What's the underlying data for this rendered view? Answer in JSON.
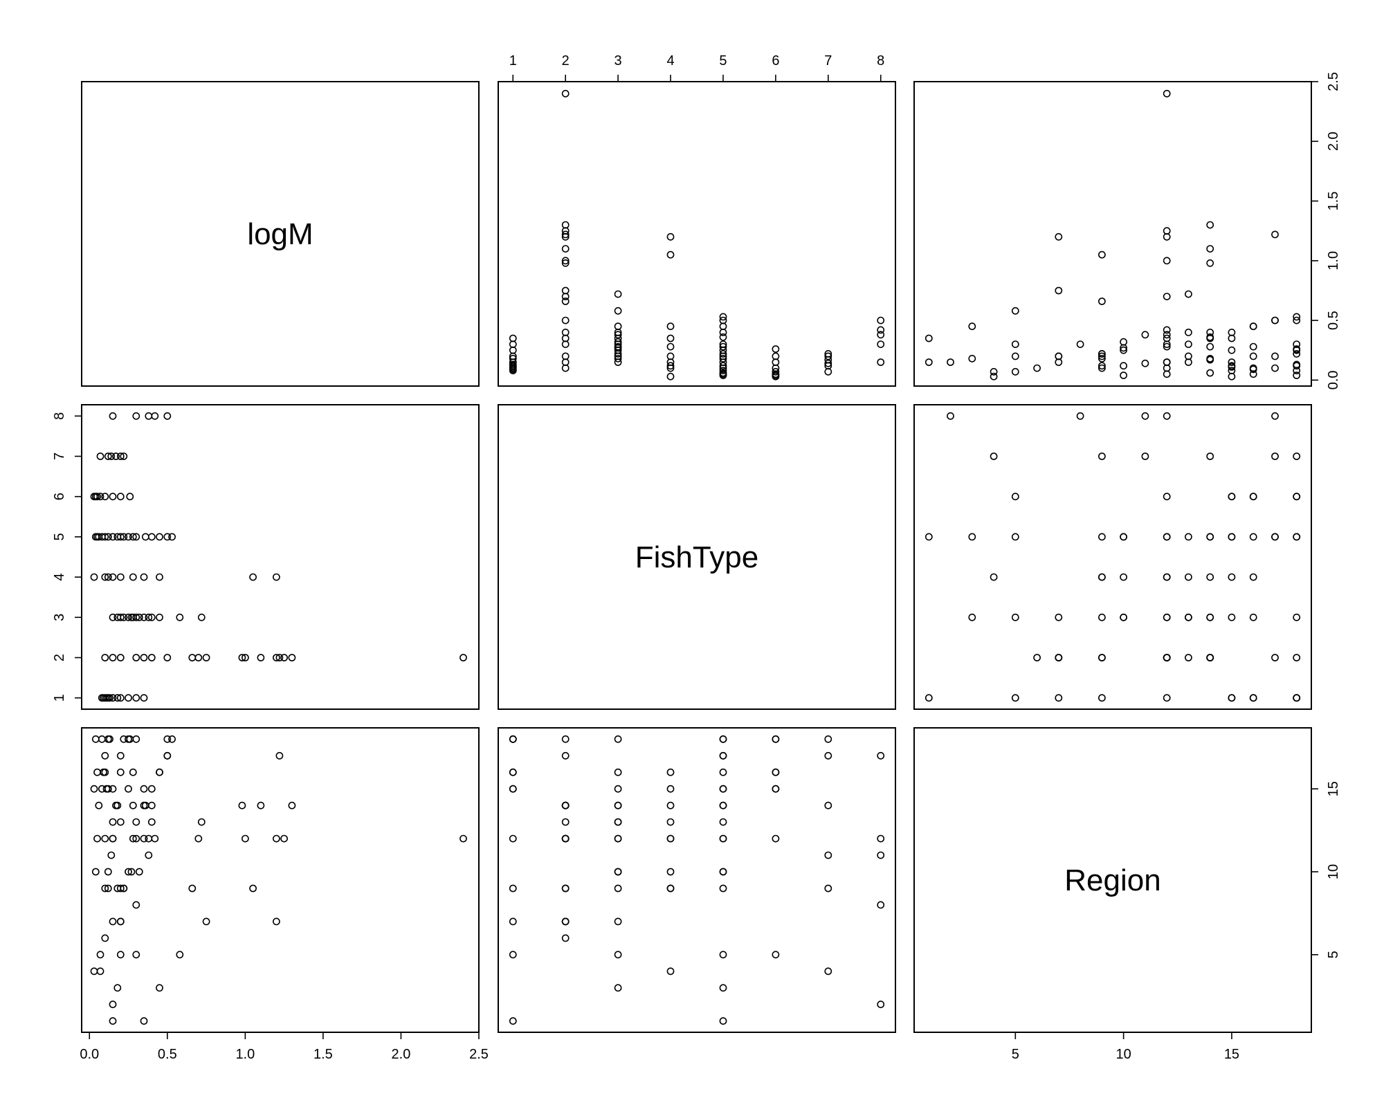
{
  "chart_data": {
    "type": "scatter",
    "kind": "pairs-matrix",
    "variables": [
      "logM",
      "FishType",
      "Region"
    ],
    "axes": {
      "logM": {
        "ticks": [
          "0.0",
          "0.5",
          "1.0",
          "1.5",
          "2.0",
          "2.5"
        ],
        "tick_values": [
          0,
          0.5,
          1,
          1.5,
          2,
          2.5
        ],
        "range": [
          -0.05,
          2.5
        ]
      },
      "FishType": {
        "ticks": [
          "1",
          "2",
          "3",
          "4",
          "5",
          "6",
          "7",
          "8"
        ],
        "tick_values": [
          1,
          2,
          3,
          4,
          5,
          6,
          7,
          8
        ],
        "range": [
          0.72,
          8.28
        ]
      },
      "Region": {
        "ticks": [
          "5",
          "10",
          "15"
        ],
        "tick_values": [
          5,
          10,
          15
        ],
        "range": [
          0.32,
          18.68
        ]
      }
    },
    "grid": false,
    "marker": "open-circle",
    "observations": [
      {
        "FishType": 1,
        "logM": 0.08,
        "Region": 18
      },
      {
        "FishType": 1,
        "logM": 0.1,
        "Region": 16
      },
      {
        "FishType": 1,
        "logM": 0.12,
        "Region": 15
      },
      {
        "FishType": 1,
        "logM": 0.15,
        "Region": 12
      },
      {
        "FishType": 1,
        "logM": 0.18,
        "Region": 9
      },
      {
        "FishType": 1,
        "logM": 0.2,
        "Region": 7
      },
      {
        "FishType": 1,
        "logM": 0.3,
        "Region": 5
      },
      {
        "FishType": 1,
        "logM": 0.35,
        "Region": 1
      },
      {
        "FishType": 1,
        "logM": 0.25,
        "Region": 18
      },
      {
        "FishType": 1,
        "logM": 0.09,
        "Region": 16
      },
      {
        "FishType": 1,
        "logM": 0.11,
        "Region": 15
      },
      {
        "FishType": 1,
        "logM": 0.13,
        "Region": 18
      },
      {
        "FishType": 2,
        "logM": 2.4,
        "Region": 12
      },
      {
        "FishType": 2,
        "logM": 1.3,
        "Region": 14
      },
      {
        "FishType": 2,
        "logM": 1.25,
        "Region": 12
      },
      {
        "FishType": 2,
        "logM": 1.22,
        "Region": 17
      },
      {
        "FishType": 2,
        "logM": 1.2,
        "Region": 7
      },
      {
        "FishType": 2,
        "logM": 1.1,
        "Region": 14
      },
      {
        "FishType": 2,
        "logM": 1.0,
        "Region": 12
      },
      {
        "FishType": 2,
        "logM": 0.98,
        "Region": 14
      },
      {
        "FishType": 2,
        "logM": 0.75,
        "Region": 7
      },
      {
        "FishType": 2,
        "logM": 0.7,
        "Region": 12
      },
      {
        "FishType": 2,
        "logM": 0.66,
        "Region": 9
      },
      {
        "FishType": 2,
        "logM": 0.5,
        "Region": 18
      },
      {
        "FishType": 2,
        "logM": 0.4,
        "Region": 13
      },
      {
        "FishType": 2,
        "logM": 0.35,
        "Region": 14
      },
      {
        "FishType": 2,
        "logM": 0.3,
        "Region": 12
      },
      {
        "FishType": 2,
        "logM": 0.2,
        "Region": 9
      },
      {
        "FishType": 2,
        "logM": 0.15,
        "Region": 7
      },
      {
        "FishType": 2,
        "logM": 0.1,
        "Region": 6
      },
      {
        "FishType": 3,
        "logM": 0.72,
        "Region": 13
      },
      {
        "FishType": 3,
        "logM": 0.58,
        "Region": 5
      },
      {
        "FishType": 3,
        "logM": 0.45,
        "Region": 3
      },
      {
        "FishType": 3,
        "logM": 0.4,
        "Region": 14
      },
      {
        "FishType": 3,
        "logM": 0.35,
        "Region": 12
      },
      {
        "FishType": 3,
        "logM": 0.32,
        "Region": 10
      },
      {
        "FishType": 3,
        "logM": 0.3,
        "Region": 18
      },
      {
        "FishType": 3,
        "logM": 0.28,
        "Region": 16
      },
      {
        "FishType": 3,
        "logM": 0.25,
        "Region": 15
      },
      {
        "FishType": 3,
        "logM": 0.22,
        "Region": 9
      },
      {
        "FishType": 3,
        "logM": 0.2,
        "Region": 7
      },
      {
        "FishType": 3,
        "logM": 0.18,
        "Region": 14
      },
      {
        "FishType": 3,
        "logM": 0.15,
        "Region": 13
      },
      {
        "FishType": 3,
        "logM": 0.38,
        "Region": 12
      },
      {
        "FishType": 3,
        "logM": 0.27,
        "Region": 10
      },
      {
        "FishType": 4,
        "logM": 1.2,
        "Region": 12
      },
      {
        "FishType": 4,
        "logM": 1.05,
        "Region": 9
      },
      {
        "FishType": 4,
        "logM": 0.45,
        "Region": 16
      },
      {
        "FishType": 4,
        "logM": 0.35,
        "Region": 15
      },
      {
        "FishType": 4,
        "logM": 0.28,
        "Region": 14
      },
      {
        "FishType": 4,
        "logM": 0.2,
        "Region": 13
      },
      {
        "FishType": 4,
        "logM": 0.15,
        "Region": 12
      },
      {
        "FishType": 4,
        "logM": 0.12,
        "Region": 10
      },
      {
        "FishType": 4,
        "logM": 0.1,
        "Region": 9
      },
      {
        "FishType": 4,
        "logM": 0.03,
        "Region": 4
      },
      {
        "FishType": 5,
        "logM": 0.53,
        "Region": 18
      },
      {
        "FishType": 5,
        "logM": 0.5,
        "Region": 17
      },
      {
        "FishType": 5,
        "logM": 0.45,
        "Region": 16
      },
      {
        "FishType": 5,
        "logM": 0.4,
        "Region": 15
      },
      {
        "FishType": 5,
        "logM": 0.36,
        "Region": 14
      },
      {
        "FishType": 5,
        "logM": 0.3,
        "Region": 13
      },
      {
        "FishType": 5,
        "logM": 0.28,
        "Region": 12
      },
      {
        "FishType": 5,
        "logM": 0.25,
        "Region": 10
      },
      {
        "FishType": 5,
        "logM": 0.22,
        "Region": 9
      },
      {
        "FishType": 5,
        "logM": 0.2,
        "Region": 5
      },
      {
        "FishType": 5,
        "logM": 0.18,
        "Region": 3
      },
      {
        "FishType": 5,
        "logM": 0.15,
        "Region": 1
      },
      {
        "FishType": 5,
        "logM": 0.12,
        "Region": 18
      },
      {
        "FishType": 5,
        "logM": 0.1,
        "Region": 17
      },
      {
        "FishType": 5,
        "logM": 0.08,
        "Region": 15
      },
      {
        "FishType": 5,
        "logM": 0.06,
        "Region": 14
      },
      {
        "FishType": 5,
        "logM": 0.05,
        "Region": 12
      },
      {
        "FishType": 5,
        "logM": 0.04,
        "Region": 10
      },
      {
        "FishType": 6,
        "logM": 0.26,
        "Region": 18
      },
      {
        "FishType": 6,
        "logM": 0.2,
        "Region": 16
      },
      {
        "FishType": 6,
        "logM": 0.15,
        "Region": 15
      },
      {
        "FishType": 6,
        "logM": 0.1,
        "Region": 12
      },
      {
        "FishType": 6,
        "logM": 0.07,
        "Region": 5
      },
      {
        "FishType": 6,
        "logM": 0.05,
        "Region": 16
      },
      {
        "FishType": 6,
        "logM": 0.04,
        "Region": 18
      },
      {
        "FishType": 6,
        "logM": 0.03,
        "Region": 15
      },
      {
        "FishType": 7,
        "logM": 0.22,
        "Region": 18
      },
      {
        "FishType": 7,
        "logM": 0.2,
        "Region": 17
      },
      {
        "FishType": 7,
        "logM": 0.17,
        "Region": 14
      },
      {
        "FishType": 7,
        "logM": 0.14,
        "Region": 11
      },
      {
        "FishType": 7,
        "logM": 0.12,
        "Region": 9
      },
      {
        "FishType": 7,
        "logM": 0.07,
        "Region": 4
      },
      {
        "FishType": 8,
        "logM": 0.5,
        "Region": 17
      },
      {
        "FishType": 8,
        "logM": 0.42,
        "Region": 12
      },
      {
        "FishType": 8,
        "logM": 0.38,
        "Region": 11
      },
      {
        "FishType": 8,
        "logM": 0.3,
        "Region": 8
      },
      {
        "FishType": 8,
        "logM": 0.15,
        "Region": 2
      }
    ]
  }
}
